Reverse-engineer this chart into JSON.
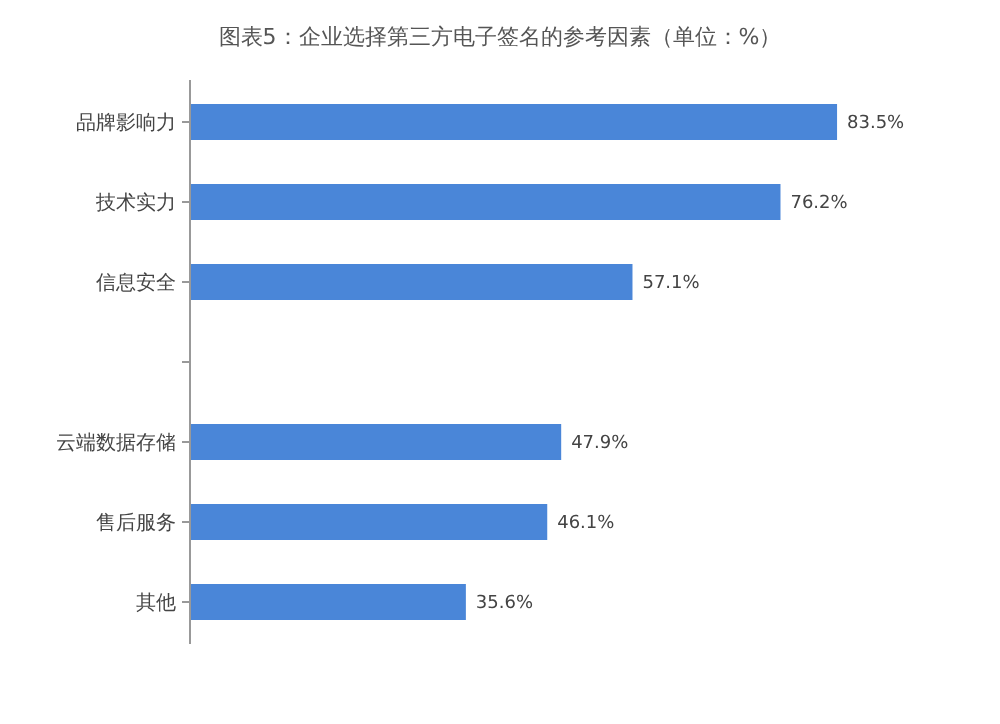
{
  "chart_data": {
    "type": "bar",
    "orientation": "horizontal",
    "title": "图表5：企业选择第三方电子签名的参考因素（单位：%）",
    "categories": [
      "品牌影响力",
      "技术实力",
      "信息安全",
      null,
      "云端数据存储",
      "售后服务",
      "其他"
    ],
    "values": [
      83.5,
      76.2,
      57.1,
      null,
      47.9,
      46.1,
      35.6
    ],
    "value_labels": [
      "83.5%",
      "76.2%",
      "57.1%",
      null,
      "47.9%",
      "46.1%",
      "35.6%"
    ],
    "color": "#4a86d8"
  }
}
